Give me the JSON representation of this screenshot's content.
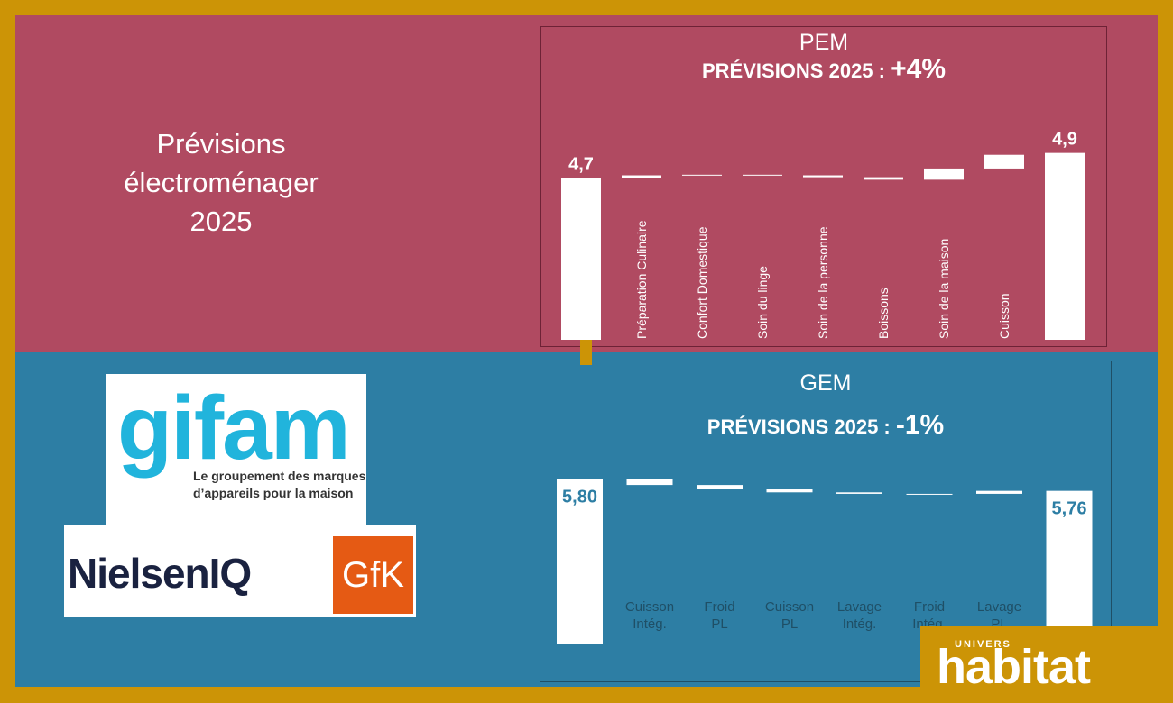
{
  "main_title": "Prévisions électroménager 2025",
  "pem": {
    "title": "PEM",
    "subtitle_prefix": "PRÉVISIONS 2025 :",
    "subtitle_value": "+4%"
  },
  "gem": {
    "title": "GEM",
    "subtitle_prefix": "PRÉVISIONS 2025 :",
    "subtitle_value": "-1%"
  },
  "logos": {
    "gifam_word": "gifam",
    "gifam_tag_line1": "Le groupement des marques",
    "gifam_tag_line2": "d’appareils pour la maison",
    "niq": "NielsenIQ",
    "gfk": "GfK",
    "univers_small": "UNIVERS",
    "univers_big": "habitat"
  },
  "colors": {
    "frame": "#cc9406",
    "top_bg": "#b04a61",
    "bottom_bg": "#2d7ea4",
    "bar": "#ffffff",
    "gem_label": "#1f4f66",
    "gem_value": "#2d7ea4"
  },
  "chart_data": [
    {
      "type": "bar",
      "subtype": "waterfall",
      "categories": [
        "",
        "Préparation Culinaire",
        "Confort Domestique",
        "Soin du linge",
        "Soin de la personne",
        "Boissons",
        "Soin de la maison",
        "Cuisson",
        ""
      ],
      "start": 4.7,
      "deltas": [
        0.02,
        0.005,
        -0.005,
        -0.015,
        -0.02,
        0.09,
        0.11
      ],
      "end": 4.9,
      "value_labels": [
        "4,7",
        "4,9"
      ],
      "ylim": [
        3.4,
        5.1
      ]
    },
    {
      "type": "bar",
      "subtype": "waterfall",
      "categories": [
        "",
        "Cuisson Intég.",
        "Froid PL",
        "Cuisson PL",
        "Lavage Intég.",
        "Froid Intég.",
        "Lavage PL",
        ""
      ],
      "start": 5.8,
      "deltas": [
        -0.02,
        -0.015,
        -0.01,
        -0.005,
        0.0,
        0.01
      ],
      "end": 5.76,
      "value_labels": [
        "5,80",
        "5,76"
      ],
      "ylim": [
        5.24,
        5.82
      ]
    }
  ]
}
